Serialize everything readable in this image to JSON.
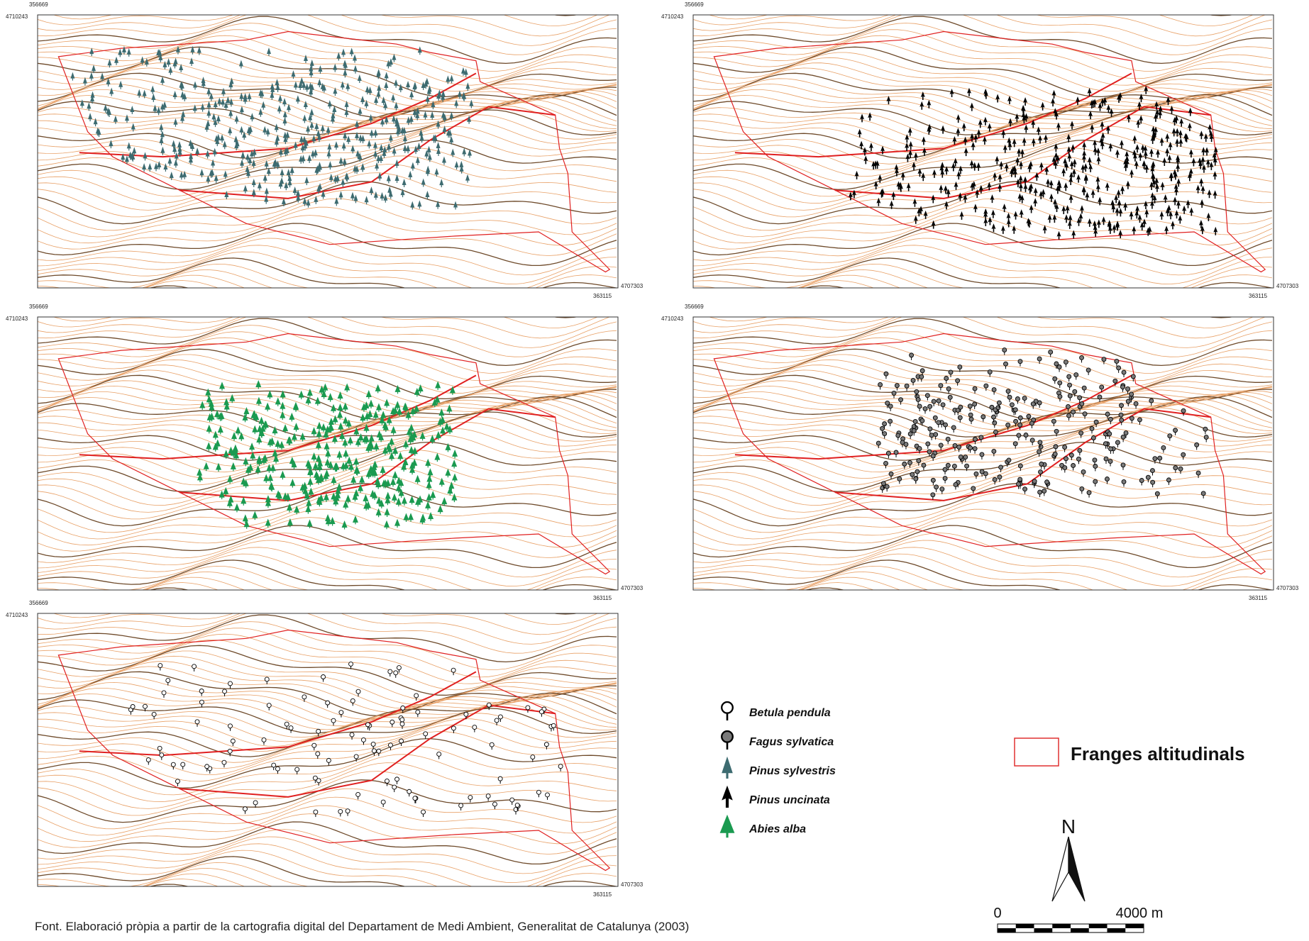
{
  "panels": [
    {
      "top_x": "356669",
      "left_y": "4710243",
      "right_y": "4707303",
      "bottom_x": "363115"
    },
    {
      "top_x": "356669",
      "left_y": "4710243",
      "right_y": "4707303",
      "bottom_x": "363115"
    },
    {
      "top_x": "356669",
      "left_y": "4710243",
      "right_y": "4707303",
      "bottom_x": "363115"
    },
    {
      "top_x": "356669",
      "left_y": "4710243",
      "right_y": "4707303",
      "bottom_x": "363115"
    },
    {
      "top_x": "356669",
      "left_y": "4710243",
      "right_y": "4707303",
      "bottom_x": "363115"
    }
  ],
  "legend": {
    "items": [
      "Betula pendula",
      "Fagus sylvatica",
      "Pinus sylvestris",
      "Pinus uncinata",
      "Abies alba"
    ],
    "bands": "Franges altitudinals"
  },
  "north": "N",
  "scale": {
    "start": "0",
    "end": "4000 m"
  },
  "source": "Font. Elaboració pròpia a partir de la cartografia digital del Departament de Medi Ambient, Generalitat de Catalunya (2003)"
}
